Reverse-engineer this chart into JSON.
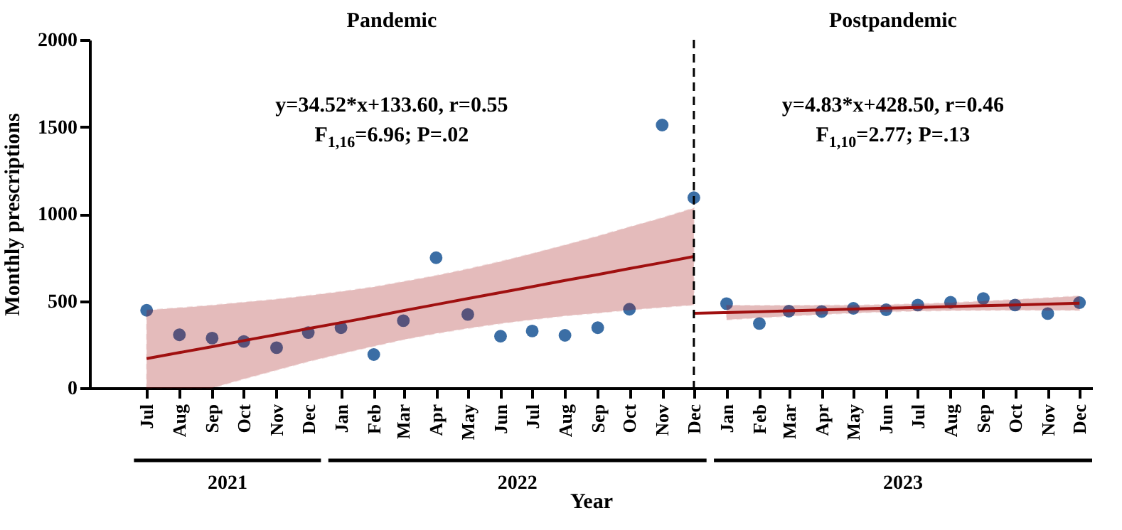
{
  "chart_data": {
    "type": "scatter",
    "xlabel": "Year",
    "ylabel": "Monthly prescriptions",
    "xlim": [
      "2021-05-08",
      "2023-12-13"
    ],
    "ylim": [
      0,
      2000
    ],
    "yticks": [
      0,
      500,
      1000,
      1500,
      2000
    ],
    "xticks": [
      {
        "value": "2021-07",
        "label": "Jul"
      },
      {
        "value": "2021-08",
        "label": "Aug"
      },
      {
        "value": "2021-09",
        "label": "Sep"
      },
      {
        "value": "2021-10",
        "label": "Oct"
      },
      {
        "value": "2021-11",
        "label": "Nov"
      },
      {
        "value": "2021-12",
        "label": "Dec"
      },
      {
        "value": "2022-01",
        "label": "Jan"
      },
      {
        "value": "2022-02",
        "label": "Feb"
      },
      {
        "value": "2022-03",
        "label": "Mar"
      },
      {
        "value": "2022-04",
        "label": "Apr"
      },
      {
        "value": "2022-05",
        "label": "May"
      },
      {
        "value": "2022-06",
        "label": "Jun"
      },
      {
        "value": "2022-07",
        "label": "Jul"
      },
      {
        "value": "2022-08",
        "label": "Aug"
      },
      {
        "value": "2022-09",
        "label": "Sep"
      },
      {
        "value": "2022-10",
        "label": "Oct"
      },
      {
        "value": "2022-11",
        "label": "Nov"
      },
      {
        "value": "2022-12",
        "label": "Dec"
      },
      {
        "value": "2023-01",
        "label": "Jan"
      },
      {
        "value": "2023-02",
        "label": "Feb"
      },
      {
        "value": "2023-03",
        "label": "Mar"
      },
      {
        "value": "2023-04",
        "label": "Apr"
      },
      {
        "value": "2023-05",
        "label": "May"
      },
      {
        "value": "2023-06",
        "label": "Jun"
      },
      {
        "value": "2023-07",
        "label": "Jul"
      },
      {
        "value": "2023-08",
        "label": "Aug"
      },
      {
        "value": "2023-09",
        "label": "Sep"
      },
      {
        "value": "2023-10",
        "label": "Oct"
      },
      {
        "value": "2023-11",
        "label": "Nov"
      },
      {
        "value": "2023-12",
        "label": "Dec"
      }
    ],
    "series": [
      {
        "type": "scatter",
        "color": "#3b6ea5",
        "x": [
          "2021-07",
          "2021-08",
          "2021-09",
          "2021-10",
          "2021-11",
          "2021-12",
          "2022-01",
          "2022-02",
          "2022-03",
          "2022-04",
          "2022-05",
          "2022-06",
          "2022-07",
          "2022-08",
          "2022-09",
          "2022-10",
          "2022-11",
          "2022-12",
          "2023-01",
          "2023-02",
          "2023-03",
          "2023-04",
          "2023-05",
          "2023-06",
          "2023-07",
          "2023-08",
          "2023-09",
          "2023-10",
          "2023-11",
          "2023-12"
        ],
        "values": [
          446,
          305,
          286,
          267,
          231,
          318,
          346,
          192,
          386,
          748,
          422,
          297,
          327,
          302,
          346,
          452,
          1510,
          1093,
          484,
          370,
          441,
          439,
          457,
          449,
          476,
          492,
          514,
          476,
          427,
          490
        ]
      },
      {
        "type": "line",
        "color": "#a01010",
        "x": [
          "2021-07",
          "2021-08",
          "2021-09",
          "2021-10",
          "2021-11",
          "2021-12",
          "2022-01",
          "2022-02",
          "2022-03",
          "2022-04",
          "2022-05",
          "2022-06",
          "2022-07",
          "2022-08",
          "2022-09",
          "2022-10",
          "2022-11",
          "2022-12"
        ],
        "values": [
          168,
          203,
          237,
          272,
          306,
          341,
          375,
          410,
          444,
          479,
          513,
          548,
          582,
          617,
          651,
          686,
          720,
          755
        ],
        "lower": [
          0,
          0,
          0,
          52,
          103,
          152,
          197,
          240,
          278,
          313,
          343,
          370,
          393,
          414,
          431,
          448,
          463,
          477
        ],
        "upper": [
          446,
          460,
          475,
          492,
          509,
          530,
          553,
          580,
          610,
          645,
          683,
          726,
          771,
          820,
          871,
          924,
          977,
          1033
        ]
      },
      {
        "type": "line",
        "color": "#a01010",
        "x": [
          "2022-12",
          "2023-01",
          "2023-02",
          "2023-03",
          "2023-04",
          "2023-05",
          "2023-06",
          "2023-07",
          "2023-08",
          "2023-09",
          "2023-10",
          "2023-11",
          "2023-12"
        ],
        "values": [
          428.5,
          433,
          438,
          443,
          448,
          453,
          458,
          462,
          467,
          472,
          477,
          482,
          487
        ],
        "lower": [
          null,
          392,
          403,
          413,
          422,
          431,
          438,
          442,
          445,
          446,
          447,
          447,
          446
        ],
        "upper": [
          null,
          474,
          473,
          473,
          474,
          475,
          478,
          482,
          489,
          498,
          507,
          517,
          528
        ]
      }
    ],
    "ref_lines": [
      {
        "axis": "x",
        "value": "2022-12",
        "line_style": "dashed",
        "color": "#000000"
      }
    ],
    "annotations": [
      "Pandemic",
      "Postpandemic",
      "y=34.52*x+133.60, r=0.55",
      "F$_{1,16}$=6.96; P=.02",
      "y=4.83*x+428.50, r=0.46",
      "F$_{1,10}$=2.77; P=.13",
      "2021",
      "2022",
      "2023"
    ]
  }
}
